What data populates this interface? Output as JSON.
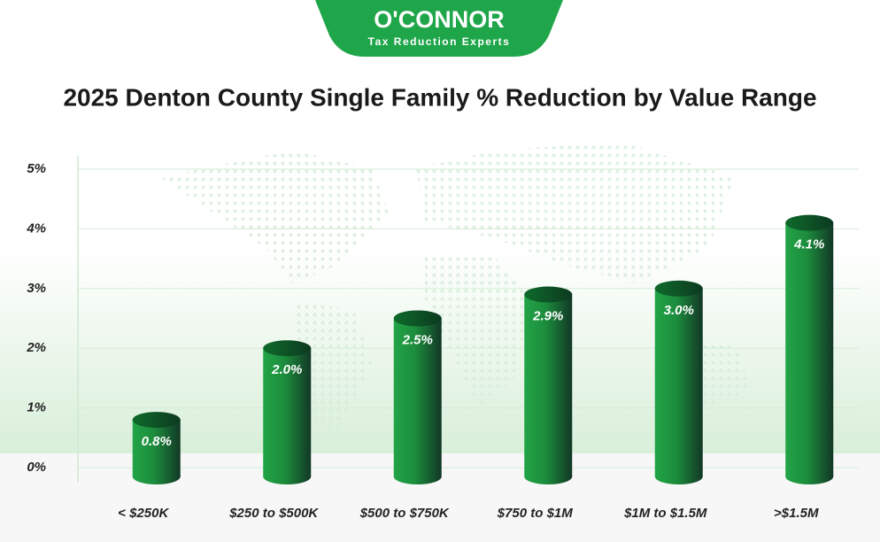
{
  "chart_data": {
    "type": "bar",
    "logo_text": "O'CONNOR",
    "logo_tagline": "Tax Reduction Experts",
    "title": "2025 Denton County Single Family % Reduction by Value Range",
    "categories": [
      "< $250K",
      "$250 to $500K",
      "$500 to $750K",
      "$750 to $1M",
      "$1M to $1.5M",
      ">$1.5M"
    ],
    "values": [
      0.8,
      2.0,
      2.5,
      2.9,
      3.0,
      4.1
    ],
    "value_labels": [
      "0.8%",
      "2.0%",
      "2.5%",
      "2.9%",
      "3.0%",
      "4.1%"
    ],
    "color": "#22a447",
    "ylim": [
      0,
      5
    ],
    "yticks": [
      {
        "value": 0,
        "label": "0%"
      },
      {
        "value": 1,
        "label": "1%"
      },
      {
        "value": 2,
        "label": "2%"
      },
      {
        "value": 3,
        "label": "3%"
      },
      {
        "value": 4,
        "label": "4%"
      },
      {
        "value": 5,
        "label": "5%"
      }
    ],
    "grid": true
  }
}
